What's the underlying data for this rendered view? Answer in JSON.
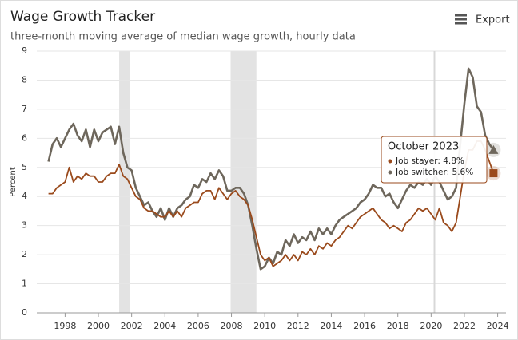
{
  "chart_data": {
    "type": "line",
    "title": "Wage Growth Tracker",
    "subtitle": "three-month moving average of median wage growth, hourly data",
    "y_label": "Percent",
    "export_label": "Export",
    "x": [
      1997,
      1997.25,
      1997.5,
      1997.75,
      1998,
      1998.25,
      1998.5,
      1998.75,
      1999,
      1999.25,
      1999.5,
      1999.75,
      2000,
      2000.25,
      2000.5,
      2000.75,
      2001,
      2001.25,
      2001.5,
      2001.75,
      2002,
      2002.25,
      2002.5,
      2002.75,
      2003,
      2003.25,
      2003.5,
      2003.75,
      2004,
      2004.25,
      2004.5,
      2004.75,
      2005,
      2005.25,
      2005.5,
      2005.75,
      2006,
      2006.25,
      2006.5,
      2006.75,
      2007,
      2007.25,
      2007.5,
      2007.75,
      2008,
      2008.25,
      2008.5,
      2008.75,
      2009,
      2009.25,
      2009.5,
      2009.75,
      2010,
      2010.25,
      2010.5,
      2010.75,
      2011,
      2011.25,
      2011.5,
      2011.75,
      2012,
      2012.25,
      2012.5,
      2012.75,
      2013,
      2013.25,
      2013.5,
      2013.75,
      2014,
      2014.25,
      2014.5,
      2014.75,
      2015,
      2015.25,
      2015.5,
      2015.75,
      2016,
      2016.25,
      2016.5,
      2016.75,
      2017,
      2017.25,
      2017.5,
      2017.75,
      2018,
      2018.25,
      2018.5,
      2018.75,
      2019,
      2019.25,
      2019.5,
      2019.75,
      2020,
      2020.25,
      2020.5,
      2020.75,
      2021,
      2021.25,
      2021.5,
      2021.75,
      2022,
      2022.25,
      2022.5,
      2022.75,
      2023,
      2023.25,
      2023.5,
      2023.75
    ],
    "series": [
      {
        "name": "Job stayer",
        "color": "#9a4a1c",
        "marker": "square",
        "values": [
          4.1,
          4.1,
          4.3,
          4.4,
          4.5,
          5.0,
          4.5,
          4.7,
          4.6,
          4.8,
          4.7,
          4.7,
          4.5,
          4.5,
          4.7,
          4.8,
          4.8,
          5.1,
          4.7,
          4.6,
          4.3,
          4.0,
          3.9,
          3.6,
          3.5,
          3.5,
          3.4,
          3.3,
          3.3,
          3.5,
          3.3,
          3.5,
          3.3,
          3.6,
          3.7,
          3.8,
          3.8,
          4.1,
          4.2,
          4.2,
          3.9,
          4.3,
          4.1,
          3.9,
          4.1,
          4.2,
          4.0,
          3.9,
          3.7,
          3.2,
          2.6,
          2.0,
          1.8,
          1.9,
          1.6,
          1.7,
          1.8,
          2.0,
          1.8,
          2.0,
          1.8,
          2.1,
          2.0,
          2.2,
          2.0,
          2.3,
          2.2,
          2.4,
          2.3,
          2.5,
          2.6,
          2.8,
          3.0,
          2.9,
          3.1,
          3.3,
          3.4,
          3.5,
          3.6,
          3.4,
          3.2,
          3.1,
          2.9,
          3.0,
          2.9,
          2.8,
          3.1,
          3.2,
          3.4,
          3.6,
          3.5,
          3.6,
          3.4,
          3.2,
          3.6,
          3.1,
          3.0,
          2.8,
          3.1,
          4.0,
          4.9,
          5.6,
          5.6,
          5.9,
          5.9,
          5.6,
          5.2,
          4.8
        ]
      },
      {
        "name": "Job switcher",
        "color": "#6e675c",
        "marker": "triangle",
        "values": [
          5.2,
          5.8,
          6.0,
          5.7,
          6.0,
          6.3,
          6.5,
          6.1,
          5.9,
          6.3,
          5.7,
          6.3,
          5.9,
          6.2,
          6.3,
          6.4,
          5.8,
          6.4,
          5.5,
          5.0,
          4.9,
          4.3,
          4.0,
          3.7,
          3.8,
          3.5,
          3.3,
          3.6,
          3.2,
          3.6,
          3.3,
          3.6,
          3.7,
          3.9,
          4.0,
          4.4,
          4.3,
          4.6,
          4.5,
          4.8,
          4.6,
          4.9,
          4.7,
          4.2,
          4.2,
          4.3,
          4.3,
          4.1,
          3.7,
          3.0,
          2.2,
          1.5,
          1.6,
          1.9,
          1.7,
          2.1,
          2.0,
          2.5,
          2.3,
          2.7,
          2.4,
          2.6,
          2.5,
          2.8,
          2.5,
          2.9,
          2.7,
          2.9,
          2.7,
          3.0,
          3.2,
          3.3,
          3.4,
          3.5,
          3.6,
          3.8,
          3.9,
          4.1,
          4.4,
          4.3,
          4.3,
          4.0,
          4.1,
          3.8,
          3.6,
          3.9,
          4.2,
          4.4,
          4.3,
          4.5,
          4.4,
          4.6,
          4.4,
          4.7,
          4.5,
          4.2,
          3.9,
          4.0,
          4.3,
          5.8,
          7.2,
          8.4,
          8.1,
          7.1,
          6.9,
          6.1,
          5.8,
          5.6
        ]
      }
    ],
    "xlim": [
      1996.3,
      2024.5
    ],
    "xticks": [
      1998,
      2000,
      2002,
      2004,
      2006,
      2008,
      2010,
      2012,
      2014,
      2016,
      2018,
      2020,
      2022,
      2024
    ],
    "ylim": [
      0,
      9
    ],
    "yticks": [
      0,
      1,
      2,
      3,
      4,
      5,
      6,
      7,
      8,
      9
    ],
    "grid": true,
    "shaded_ranges": [
      [
        2001.25,
        2001.9
      ],
      [
        2007.95,
        2009.5
      ]
    ],
    "vline": 2020.2,
    "tooltip": {
      "title": "October 2023",
      "lines": [
        "Job stayer: 4.8%",
        "Job switcher: 5.6%"
      ]
    }
  }
}
